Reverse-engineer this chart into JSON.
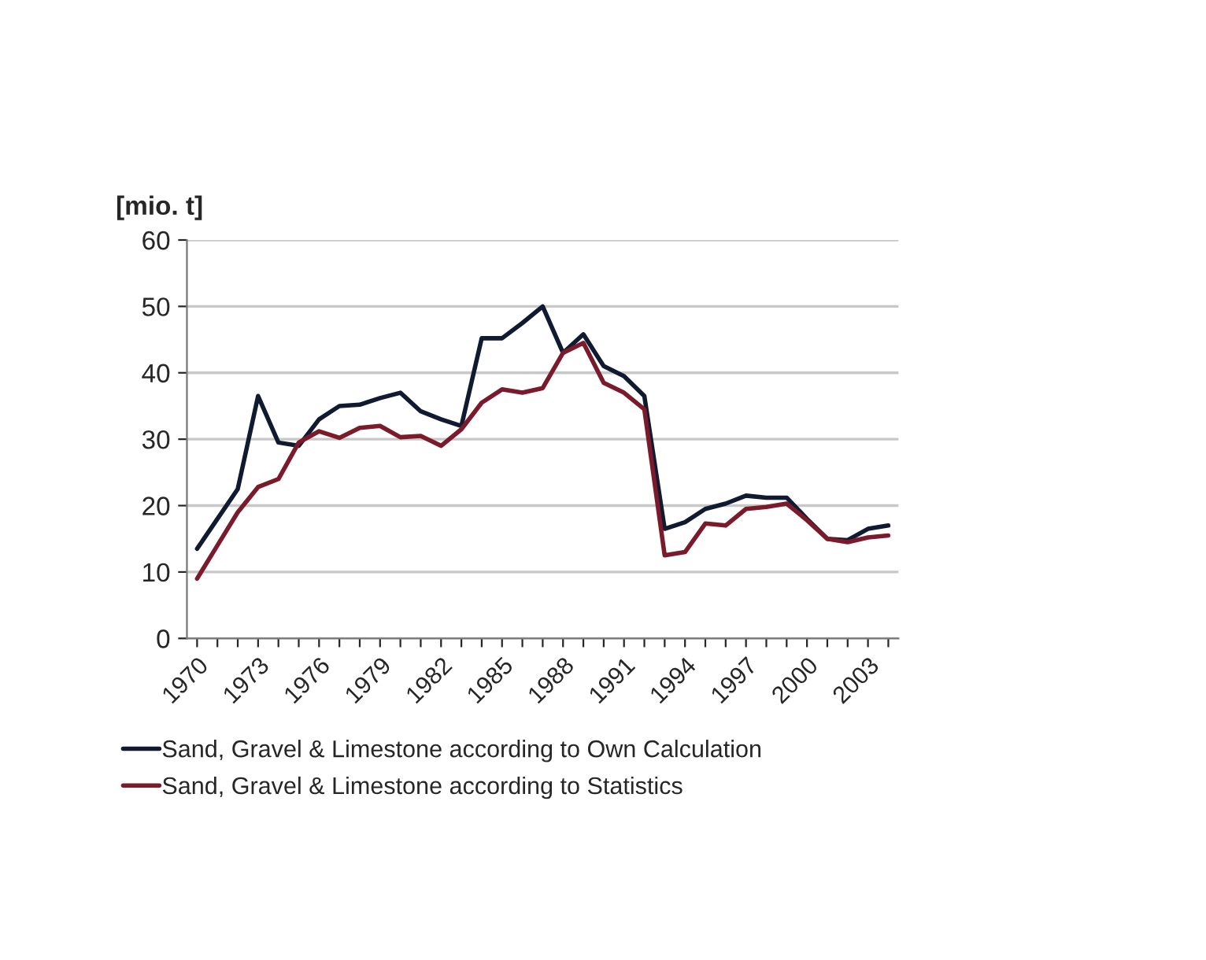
{
  "chart_data": {
    "type": "line",
    "ylabel": "[mio. t]",
    "categories": [
      "1970",
      null,
      null,
      "1973",
      null,
      null,
      "1976",
      null,
      null,
      "1979",
      null,
      null,
      "1982",
      null,
      null,
      "1985",
      null,
      null,
      "1988",
      null,
      null,
      "1991",
      null,
      null,
      "1994",
      null,
      null,
      "1997",
      null,
      null,
      "2000",
      null,
      null,
      "2003",
      null
    ],
    "series": [
      {
        "name": "Sand, Gravel & Limestone according to Own Calculation",
        "color": "#101a30",
        "values": [
          13.5,
          18,
          22.5,
          36.5,
          29.5,
          29,
          33,
          35,
          35.2,
          36.2,
          37,
          34.2,
          33,
          32,
          45.2,
          45.2,
          47.5,
          50,
          43,
          45.8,
          41,
          39.5,
          36.5,
          16.5,
          17.5,
          19.5,
          20.3,
          21.5,
          21.2,
          21.2,
          18,
          15,
          14.8,
          16.5,
          17
        ]
      },
      {
        "name": "Sand, Gravel & Limestone according to Statistics",
        "color": "#7a1a2a",
        "values": [
          9,
          14,
          19,
          22.8,
          24,
          29.5,
          31.2,
          30.2,
          31.7,
          32,
          30.3,
          30.5,
          29,
          31.5,
          35.5,
          37.5,
          37,
          37.7,
          43,
          44.5,
          38.5,
          37,
          34.5,
          12.5,
          13,
          17.3,
          17,
          19.5,
          19.8,
          20.3,
          17.8,
          15,
          14.5,
          15.2,
          15.5
        ]
      }
    ],
    "ylim": [
      0,
      60
    ],
    "yticks": [
      0,
      10,
      20,
      30,
      40,
      50,
      60
    ],
    "grid": "y",
    "legend": "bottom",
    "marker": "none",
    "line_style": "solid"
  }
}
